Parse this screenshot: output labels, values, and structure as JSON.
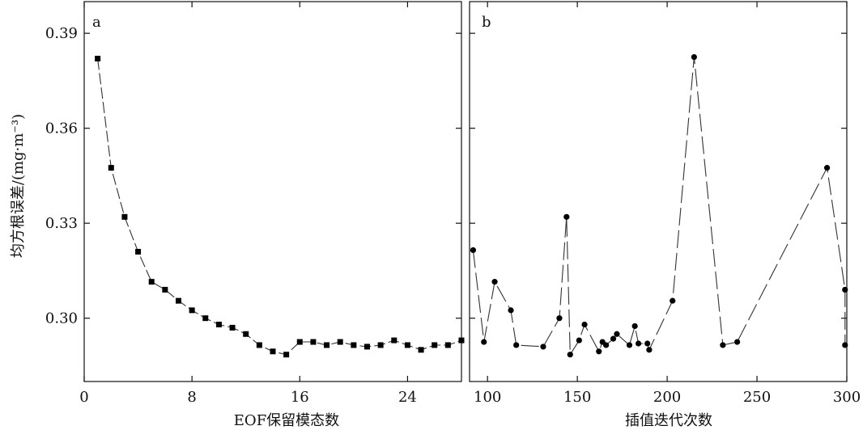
{
  "ylabel": "均方根误差/(mg·m⁻³)",
  "chart_data": [
    {
      "type": "line",
      "panel_label": "a",
      "xlabel": "EOF保留模态数",
      "xlim": [
        0,
        28
      ],
      "ylim": [
        0.28,
        0.4
      ],
      "xticks": [
        0,
        8,
        16,
        24
      ],
      "yticks": [
        0.3,
        0.33,
        0.36,
        0.39
      ],
      "ytick_labels": [
        "0.30",
        "0.33",
        "0.36",
        "0.39"
      ],
      "marker": "square",
      "line_style": "dashed",
      "grid": false,
      "x": [
        1,
        2,
        3,
        4,
        5,
        6,
        7,
        8,
        9,
        10,
        11,
        12,
        13,
        14,
        15,
        16,
        17,
        18,
        19,
        20,
        21,
        22,
        23,
        24,
        25,
        26,
        27,
        28
      ],
      "y": [
        0.382,
        0.3475,
        0.332,
        0.321,
        0.3115,
        0.309,
        0.3055,
        0.3025,
        0.3,
        0.298,
        0.297,
        0.295,
        0.2915,
        0.2895,
        0.2885,
        0.2925,
        0.2925,
        0.2915,
        0.2925,
        0.2915,
        0.291,
        0.2915,
        0.293,
        0.2915,
        0.29,
        0.2915,
        0.2915,
        0.293
      ]
    },
    {
      "type": "line",
      "panel_label": "b",
      "xlabel": "插值迭代次数",
      "xlim": [
        90,
        300
      ],
      "ylim": [
        0.28,
        0.4
      ],
      "xticks": [
        100,
        150,
        200,
        250,
        300
      ],
      "yticks": [
        0.3,
        0.33,
        0.36,
        0.39
      ],
      "marker": "circle",
      "line_style": "dashed",
      "grid": false,
      "x": [
        92,
        98,
        104,
        113,
        116,
        131,
        140,
        144,
        146,
        151,
        154,
        162,
        164,
        166,
        170,
        172,
        179,
        182,
        184,
        189,
        190,
        203,
        215,
        231,
        239,
        289,
        299,
        299
      ],
      "y": [
        0.3215,
        0.2925,
        0.3115,
        0.3025,
        0.2915,
        0.291,
        0.3,
        0.332,
        0.2885,
        0.293,
        0.298,
        0.2895,
        0.2925,
        0.2915,
        0.2935,
        0.295,
        0.2915,
        0.2975,
        0.292,
        0.292,
        0.29,
        0.3055,
        0.3825,
        0.2915,
        0.2925,
        0.3475,
        0.309,
        0.2915
      ]
    }
  ]
}
